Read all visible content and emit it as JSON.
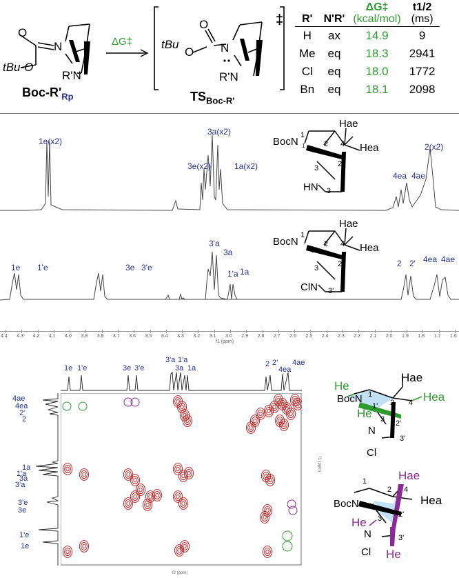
{
  "scheme": {
    "reagent_pre": "tBu-O",
    "reagent_sub": "R'N",
    "reagent_N": "N",
    "reagent_O": "O",
    "compound_label": "Boc-R'",
    "compound_sub": "Rp",
    "arrow_label": "ΔG‡",
    "ts_pre": "tBu",
    "ts_O": "O",
    "ts_O2": "O",
    "ts_N": "N",
    "ts_sub": "R'N",
    "ts_dagger": "‡",
    "ts_label": "TS",
    "ts_label_sub": "Boc-R'"
  },
  "table": {
    "headers": [
      "R'",
      "N'R'",
      "ΔG‡",
      "t1/2"
    ],
    "units": [
      "",
      "",
      "(kcal/mol)",
      "(ms)"
    ],
    "rows": [
      [
        "H",
        "ax",
        "14.9",
        "9"
      ],
      [
        "Me",
        "eq",
        "18.3",
        "2941"
      ],
      [
        "Cl",
        "eq",
        "18.0",
        "1772"
      ],
      [
        "Bn",
        "eq",
        "18.1",
        "2098"
      ]
    ]
  },
  "spectrum1": {
    "peak_labels": [
      "1e(x2)",
      "3e(x2)",
      "3a(x2)",
      "1a(x2)",
      "4ea",
      "4ae",
      "2(x2)"
    ],
    "struct": {
      "boc": "BocN",
      "hn": "HN",
      "hae": "Hae",
      "hea": "Hea",
      "n1": "1",
      "n2": "2",
      "n3": "3",
      "n4": "4",
      "n2b": "2",
      "n3b": "3"
    }
  },
  "spectrum2": {
    "peak_labels": [
      "1e",
      "1'e",
      "3e",
      "3'e",
      "3'a",
      "3a",
      "1'a",
      "1a",
      "2",
      "2'",
      "4ea",
      "4ae"
    ],
    "struct": {
      "boc": "BocN",
      "cln": "ClN",
      "hae": "Hae",
      "hea": "Hea",
      "n1": "1",
      "n1p": "1'",
      "n2": "2",
      "n2p": "2'",
      "n3": "3",
      "n3p": "3'",
      "n4": "4"
    }
  },
  "axis": {
    "ticks": [
      "4.4",
      "4.3",
      "4.2",
      "4.1",
      "4.0",
      "3.9",
      "3.8",
      "3.7",
      "3.6",
      "3.5",
      "3.4",
      "3.3",
      "3.2",
      "3.1",
      "3.0",
      "2.9",
      "2.8",
      "2.7",
      "2.6",
      "2.5",
      "2.4",
      "2.3",
      "2.2",
      "2.1",
      "2.0",
      "1.9",
      "1.8",
      "1.7",
      "1.6"
    ],
    "label": "f1 (ppm)"
  },
  "noesy": {
    "top_labels": [
      "1e",
      "1'e",
      "3e",
      "3'e",
      "3'a",
      "1'a",
      "3a",
      "1a",
      "2",
      "2'",
      "4ea",
      "4ae"
    ],
    "left_labels": [
      "4ae",
      "4ea",
      "2'",
      "2",
      "1a",
      "1'a",
      "3a",
      "3'a",
      "3'e",
      "3e",
      "1'e",
      "1e"
    ],
    "x_axis_label": "f2 (ppm)",
    "y_axis_label": "f1 (ppm)"
  },
  "struct_green": {
    "boc": "BocN",
    "n": "N",
    "cl": "Cl",
    "hae": "Hae",
    "hea": "Hea",
    "he1": "He",
    "he2": "He",
    "n1": "1",
    "n1p": "1'",
    "n2": "2",
    "n2p": "2'",
    "n3": "3",
    "n3p": "3'",
    "n4": "4"
  },
  "struct_purple": {
    "boc": "BocN",
    "n": "N",
    "cl": "Cl",
    "hae": "Hae",
    "hea": "Hea",
    "he1": "He",
    "he2": "He",
    "n1": "1",
    "n1p": "1'",
    "n2": "2",
    "n2p": "2'",
    "n3": "3",
    "n3p": "3'",
    "n4": "4"
  },
  "colors": {
    "label_blue": "#1f2f8f",
    "green": "#2e9b2e",
    "purple": "#8a2a96",
    "contour": "#c01818"
  }
}
